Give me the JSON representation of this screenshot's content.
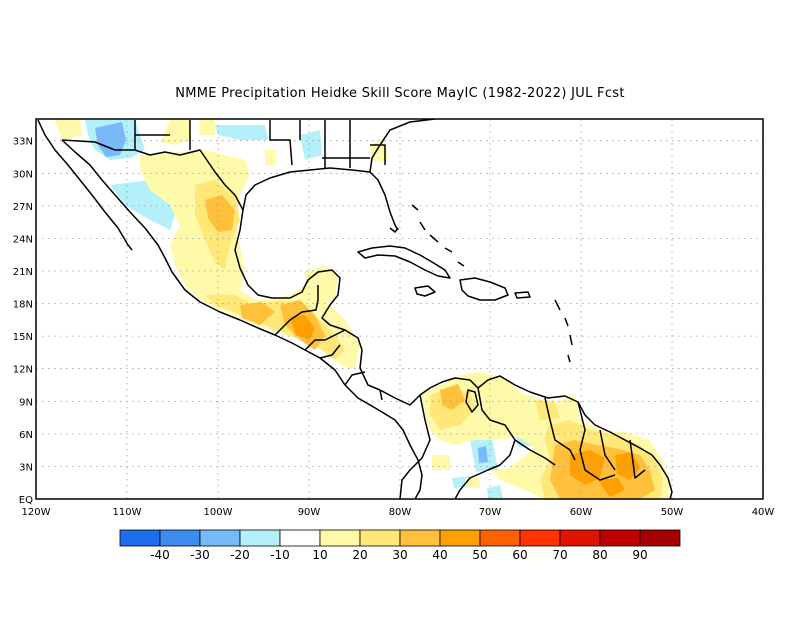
{
  "title": "NMME  Precipitation Heidke Skill Score MayIC (1982-2022) JUL Fcst",
  "map": {
    "lon_range": [
      -120,
      -40
    ],
    "lat_range": [
      0,
      35
    ],
    "x_ticks": [
      "120W",
      "110W",
      "100W",
      "90W",
      "80W",
      "70W",
      "60W",
      "50W",
      "40W"
    ],
    "y_ticks": [
      "EQ",
      "3N",
      "6N",
      "9N",
      "12N",
      "15N",
      "18N",
      "21N",
      "24N",
      "27N",
      "30N",
      "33N"
    ],
    "grid": "dotted"
  },
  "colorbar": {
    "labels": [
      "-40",
      "-30",
      "-20",
      "-10",
      "10",
      "20",
      "30",
      "40",
      "50",
      "60",
      "70",
      "80",
      "90"
    ],
    "colors": [
      "#1e6eeb",
      "#3c8cf0",
      "#78b9fa",
      "#b4f0fa",
      "#ffffff",
      "#fffaaa",
      "#ffe878",
      "#ffc03c",
      "#ffa000",
      "#ff6000",
      "#ff3200",
      "#e11400",
      "#c00000",
      "#a50000"
    ]
  },
  "field_patches": [
    {
      "level": "-20",
      "lon": -108.5,
      "lat": 32.7
    },
    {
      "level": "-10",
      "lon": -106,
      "lat": 33
    },
    {
      "level": "-10",
      "lon": -106,
      "lat": 26
    },
    {
      "level": "-10",
      "lon": -73,
      "lat": 2.5
    },
    {
      "level": "-10",
      "lon": -66,
      "lat": 8
    },
    {
      "level": "-10",
      "lon": -70,
      "lat": 5
    },
    {
      "level": "20",
      "lon": -102,
      "lat": 26
    },
    {
      "level": "20",
      "lon": -99,
      "lat": 21
    },
    {
      "level": "20",
      "lon": -86,
      "lat": 16
    },
    {
      "level": "20",
      "lon": -74,
      "lat": 8
    },
    {
      "level": "20",
      "lon": -62,
      "lat": 9
    },
    {
      "level": "20",
      "lon": -55,
      "lat": 4
    },
    {
      "level": "30",
      "lon": -100,
      "lat": 26.5
    },
    {
      "level": "30",
      "lon": -97,
      "lat": 17.5
    },
    {
      "level": "30",
      "lon": -90,
      "lat": 16.5
    },
    {
      "level": "30",
      "lon": -74.5,
      "lat": 8.3
    },
    {
      "level": "30",
      "lon": -59,
      "lat": 4
    },
    {
      "level": "40",
      "lon": -89,
      "lat": 15.3
    },
    {
      "level": "40",
      "lon": -58,
      "lat": 3.3
    },
    {
      "level": "40",
      "lon": -54,
      "lat": 3.7
    }
  ]
}
